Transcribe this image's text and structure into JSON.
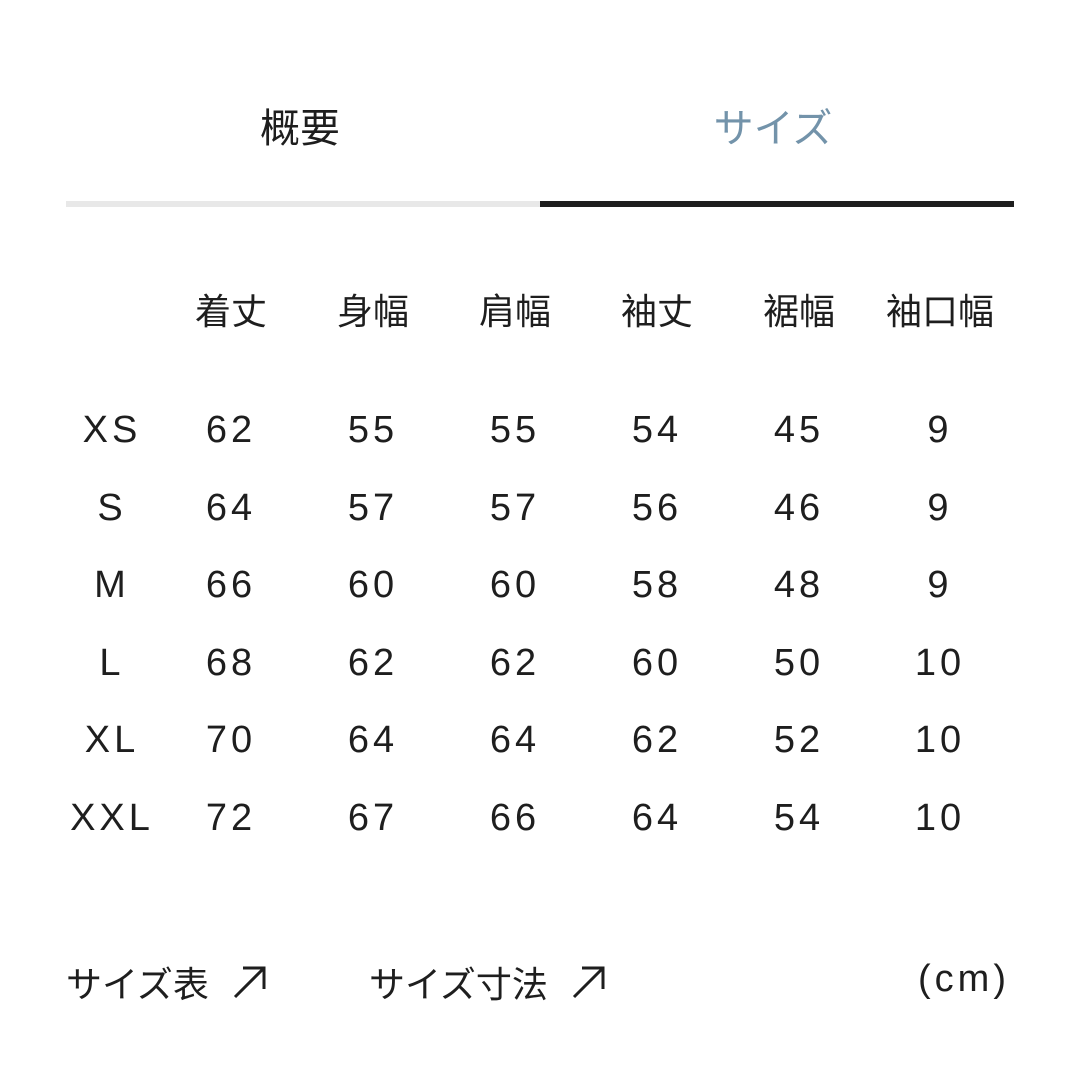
{
  "tabs": [
    {
      "label": "概要",
      "active": false
    },
    {
      "label": "サイズ",
      "active": true
    }
  ],
  "colors": {
    "active_tab": "#7393aa",
    "text": "#1e1e1e",
    "indicator": "#1e1e1e",
    "track": "#e8e8e8"
  },
  "table": {
    "headers": [
      "着丈",
      "身幅",
      "肩幅",
      "袖丈",
      "裾幅",
      "袖口幅"
    ],
    "rows": [
      {
        "size": "XS",
        "values": [
          "62",
          "55",
          "55",
          "54",
          "45",
          "9"
        ]
      },
      {
        "size": "S",
        "values": [
          "64",
          "57",
          "57",
          "56",
          "46",
          "9"
        ]
      },
      {
        "size": "M",
        "values": [
          "66",
          "60",
          "60",
          "58",
          "48",
          "9"
        ]
      },
      {
        "size": "L",
        "values": [
          "68",
          "62",
          "62",
          "60",
          "50",
          "10"
        ]
      },
      {
        "size": "XL",
        "values": [
          "70",
          "64",
          "64",
          "62",
          "52",
          "10"
        ]
      },
      {
        "size": "XXL",
        "values": [
          "72",
          "67",
          "66",
          "64",
          "54",
          "10"
        ]
      }
    ]
  },
  "footer": {
    "size_chart_link": "サイズ表",
    "size_measure_link": "サイズ寸法",
    "link_icon": "arrow-up-right-icon",
    "unit": "(cm)"
  }
}
